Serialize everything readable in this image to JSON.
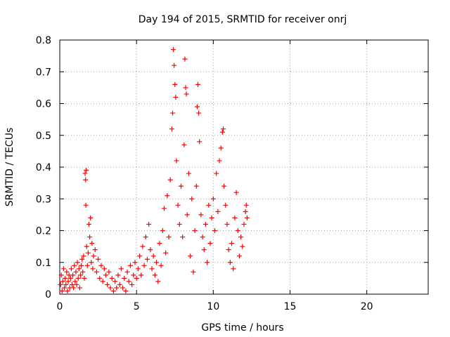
{
  "chart_data": {
    "type": "scatter",
    "title": "Day 194 of 2015, SRMTID for receiver onrj",
    "xlabel": "GPS time / hours",
    "ylabel": "SRMTID / TECUs",
    "xlim": [
      0,
      24
    ],
    "ylim": [
      0,
      0.8
    ],
    "xticks": [
      0,
      5,
      10,
      15,
      20
    ],
    "yticks": [
      0,
      0.1,
      0.2,
      0.3,
      0.4,
      0.5,
      0.6,
      0.7,
      0.8
    ],
    "grid": true,
    "marker": "+",
    "series": [
      {
        "name": "SRMTID",
        "color": "#ff0000",
        "points": [
          [
            0.05,
            0.03
          ],
          [
            0.1,
            0.06
          ],
          [
            0.15,
            0.01
          ],
          [
            0.2,
            0.04
          ],
          [
            0.25,
            0.08
          ],
          [
            0.3,
            0.02
          ],
          [
            0.35,
            0.05
          ],
          [
            0.4,
            0.03
          ],
          [
            0.45,
            0.07
          ],
          [
            0.5,
            0.01
          ],
          [
            0.55,
            0.04
          ],
          [
            0.6,
            0.06
          ],
          [
            0.65,
            0.02
          ],
          [
            0.7,
            0.05
          ],
          [
            0.75,
            0.08
          ],
          [
            0.8,
            0.03
          ],
          [
            0.85,
            0.06
          ],
          [
            0.9,
            0.02
          ],
          [
            0.95,
            0.09
          ],
          [
            1.0,
            0.04
          ],
          [
            1.05,
            0.07
          ],
          [
            1.1,
            0.03
          ],
          [
            1.15,
            0.1
          ],
          [
            1.2,
            0.05
          ],
          [
            1.25,
            0.08
          ],
          [
            1.3,
            0.02
          ],
          [
            1.35,
            0.06
          ],
          [
            1.4,
            0.09
          ],
          [
            1.45,
            0.11
          ],
          [
            1.5,
            0.07
          ],
          [
            1.55,
            0.12
          ],
          [
            1.6,
            0.05
          ],
          [
            1.65,
            0.38
          ],
          [
            1.68,
            0.36
          ],
          [
            1.7,
            0.28
          ],
          [
            1.72,
            0.39
          ],
          [
            1.75,
            0.15
          ],
          [
            1.8,
            0.09
          ],
          [
            1.85,
            0.13
          ],
          [
            1.9,
            0.22
          ],
          [
            1.95,
            0.18
          ],
          [
            2.0,
            0.24
          ],
          [
            2.05,
            0.1
          ],
          [
            2.1,
            0.16
          ],
          [
            2.15,
            0.08
          ],
          [
            2.2,
            0.12
          ],
          [
            2.3,
            0.14
          ],
          [
            2.4,
            0.07
          ],
          [
            2.5,
            0.11
          ],
          [
            2.6,
            0.05
          ],
          [
            2.7,
            0.09
          ],
          [
            2.8,
            0.04
          ],
          [
            2.9,
            0.08
          ],
          [
            3.0,
            0.06
          ],
          [
            3.1,
            0.03
          ],
          [
            3.2,
            0.07
          ],
          [
            3.3,
            0.02
          ],
          [
            3.4,
            0.05
          ],
          [
            3.5,
            0.01
          ],
          [
            3.6,
            0.04
          ],
          [
            3.7,
            0.02
          ],
          [
            3.8,
            0.06
          ],
          [
            3.9,
            0.03
          ],
          [
            4.0,
            0.08
          ],
          [
            4.1,
            0.02
          ],
          [
            4.2,
            0.05
          ],
          [
            4.3,
            0.01
          ],
          [
            4.4,
            0.07
          ],
          [
            4.5,
            0.04
          ],
          [
            4.6,
            0.09
          ],
          [
            4.7,
            0.03
          ],
          [
            4.8,
            0.06
          ],
          [
            4.9,
            0.1
          ],
          [
            5.0,
            0.05
          ],
          [
            5.1,
            0.08
          ],
          [
            5.2,
            0.12
          ],
          [
            5.3,
            0.06
          ],
          [
            5.4,
            0.15
          ],
          [
            5.5,
            0.09
          ],
          [
            5.6,
            0.18
          ],
          [
            5.7,
            0.11
          ],
          [
            5.8,
            0.22
          ],
          [
            5.9,
            0.14
          ],
          [
            6.0,
            0.08
          ],
          [
            6.1,
            0.12
          ],
          [
            6.2,
            0.06
          ],
          [
            6.3,
            0.1
          ],
          [
            6.4,
            0.04
          ],
          [
            6.5,
            0.16
          ],
          [
            6.6,
            0.09
          ],
          [
            6.7,
            0.2
          ],
          [
            6.8,
            0.27
          ],
          [
            6.9,
            0.13
          ],
          [
            7.0,
            0.31
          ],
          [
            7.1,
            0.18
          ],
          [
            7.2,
            0.36
          ],
          [
            7.3,
            0.52
          ],
          [
            7.35,
            0.57
          ],
          [
            7.4,
            0.77
          ],
          [
            7.45,
            0.72
          ],
          [
            7.5,
            0.66
          ],
          [
            7.55,
            0.62
          ],
          [
            7.6,
            0.42
          ],
          [
            7.7,
            0.28
          ],
          [
            7.8,
            0.22
          ],
          [
            7.9,
            0.34
          ],
          [
            8.0,
            0.18
          ],
          [
            8.1,
            0.47
          ],
          [
            8.15,
            0.74
          ],
          [
            8.2,
            0.65
          ],
          [
            8.25,
            0.63
          ],
          [
            8.3,
            0.25
          ],
          [
            8.4,
            0.38
          ],
          [
            8.5,
            0.12
          ],
          [
            8.6,
            0.3
          ],
          [
            8.7,
            0.07
          ],
          [
            8.8,
            0.2
          ],
          [
            8.9,
            0.34
          ],
          [
            8.95,
            0.59
          ],
          [
            9.0,
            0.66
          ],
          [
            9.05,
            0.57
          ],
          [
            9.1,
            0.48
          ],
          [
            9.2,
            0.25
          ],
          [
            9.3,
            0.18
          ],
          [
            9.4,
            0.14
          ],
          [
            9.5,
            0.22
          ],
          [
            9.6,
            0.1
          ],
          [
            9.7,
            0.28
          ],
          [
            9.8,
            0.16
          ],
          [
            9.9,
            0.24
          ],
          [
            10.0,
            0.3
          ],
          [
            10.1,
            0.2
          ],
          [
            10.2,
            0.38
          ],
          [
            10.3,
            0.26
          ],
          [
            10.4,
            0.42
          ],
          [
            10.5,
            0.46
          ],
          [
            10.6,
            0.51
          ],
          [
            10.65,
            0.52
          ],
          [
            10.7,
            0.34
          ],
          [
            10.8,
            0.28
          ],
          [
            10.9,
            0.22
          ],
          [
            11.0,
            0.14
          ],
          [
            11.1,
            0.1
          ],
          [
            11.2,
            0.16
          ],
          [
            11.3,
            0.08
          ],
          [
            11.4,
            0.24
          ],
          [
            11.5,
            0.32
          ],
          [
            11.6,
            0.2
          ],
          [
            11.7,
            0.12
          ],
          [
            11.8,
            0.18
          ],
          [
            11.9,
            0.15
          ],
          [
            12.0,
            0.22
          ],
          [
            12.1,
            0.26
          ],
          [
            12.15,
            0.28
          ],
          [
            12.2,
            0.24
          ]
        ]
      }
    ]
  }
}
